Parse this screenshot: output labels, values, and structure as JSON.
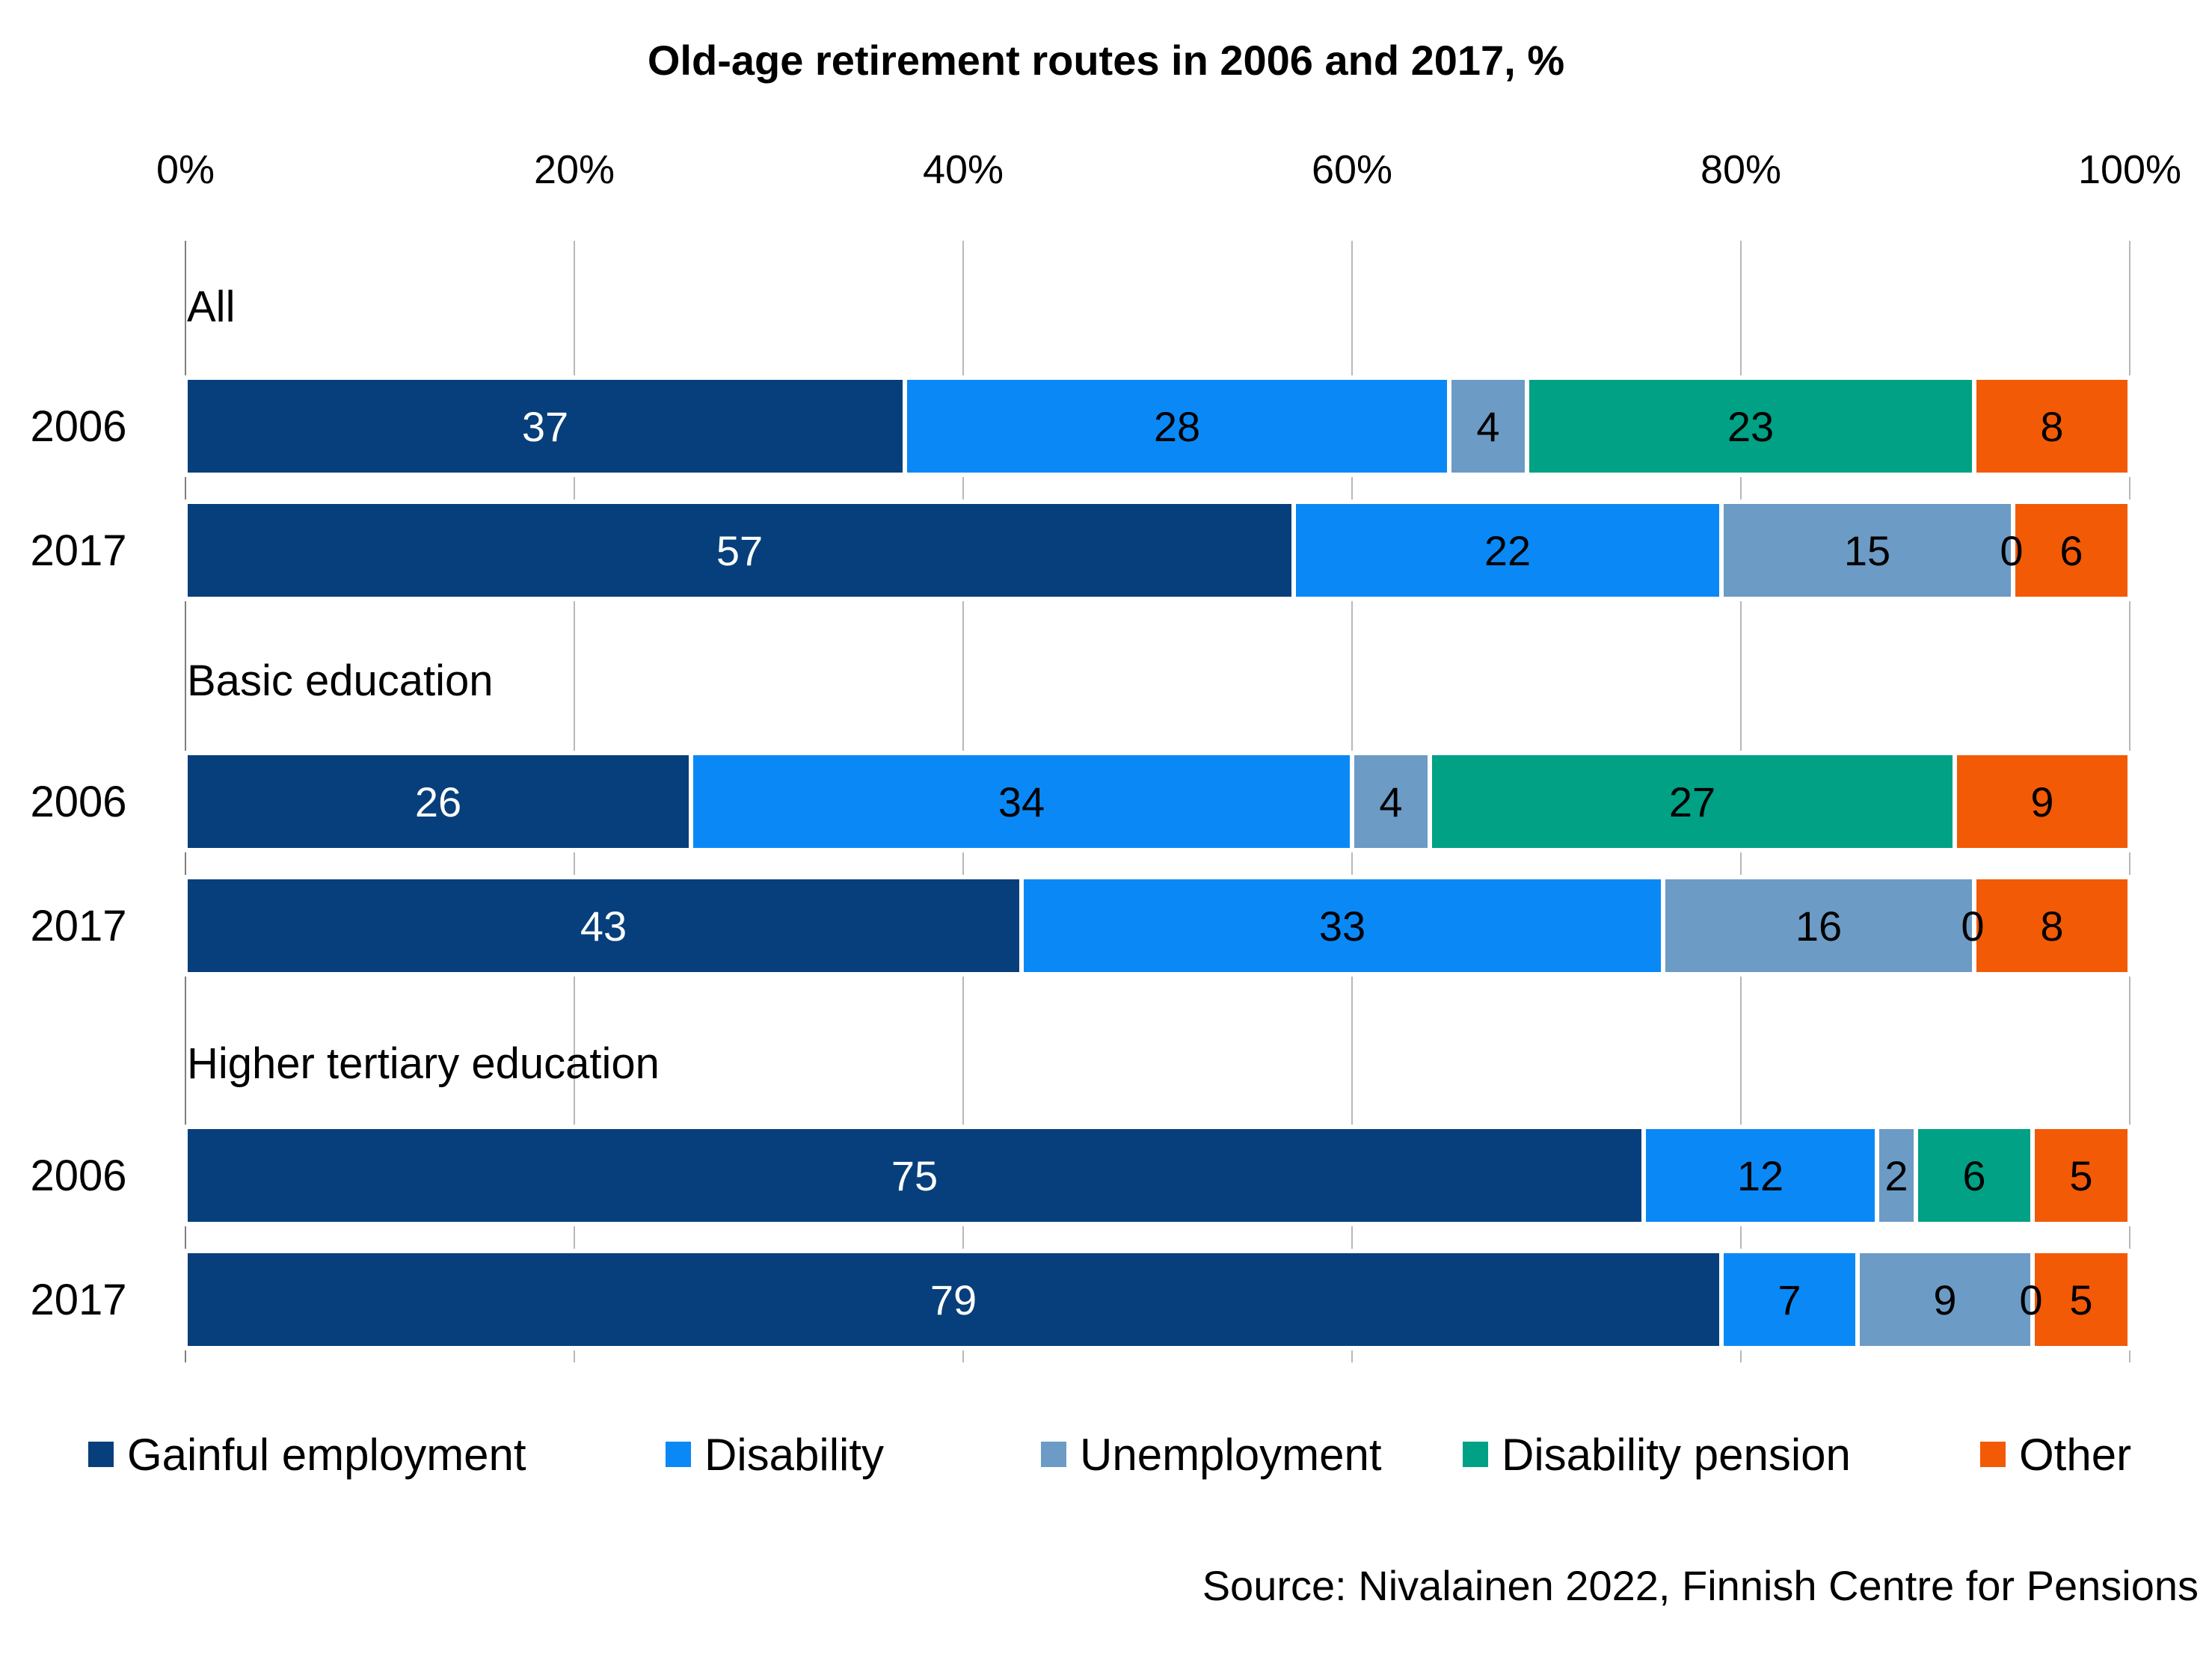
{
  "chart_data": {
    "type": "bar",
    "orientation": "horizontal",
    "stacked": "percent",
    "title": "Old-age retirement routes in 2006 and 2017, %",
    "xlim": [
      0,
      100
    ],
    "x_ticks": [
      "0%",
      "20%",
      "40%",
      "60%",
      "80%",
      "100%"
    ],
    "x_tick_values": [
      0,
      20,
      40,
      60,
      80,
      100
    ],
    "xaxis_position": "top",
    "grid": true,
    "legend_position": "bottom",
    "groups": [
      {
        "label": "All",
        "rows": [
          {
            "label": "2006",
            "values": [
              37,
              28,
              4,
              23,
              8
            ]
          },
          {
            "label": "2017",
            "values": [
              57,
              22,
              15,
              0,
              6
            ]
          }
        ]
      },
      {
        "label": "Basic education",
        "rows": [
          {
            "label": "2006",
            "values": [
              26,
              34,
              4,
              27,
              9
            ]
          },
          {
            "label": "2017",
            "values": [
              43,
              33,
              16,
              0,
              8
            ]
          }
        ]
      },
      {
        "label": "Higher tertiary education",
        "rows": [
          {
            "label": "2006",
            "values": [
              75,
              12,
              2,
              6,
              5
            ]
          },
          {
            "label": "2017",
            "values": [
              79,
              7,
              9,
              0,
              5
            ]
          }
        ]
      }
    ],
    "series": [
      {
        "name": "Gainful employment",
        "color": "#063f7b",
        "label_color": "#ffffff"
      },
      {
        "name": "Disability",
        "color": "#0a89f6",
        "label_color": "#000000"
      },
      {
        "name": "Unemployment",
        "color": "#6c9bc5",
        "label_color": "#000000"
      },
      {
        "name": "Disability pension",
        "color": "#00a185",
        "label_color": "#000000"
      },
      {
        "name": "Other",
        "color": "#f25a06",
        "label_color": "#000000"
      }
    ],
    "source": "Source: Nivalainen 2022, Finnish Centre for Pensions"
  }
}
